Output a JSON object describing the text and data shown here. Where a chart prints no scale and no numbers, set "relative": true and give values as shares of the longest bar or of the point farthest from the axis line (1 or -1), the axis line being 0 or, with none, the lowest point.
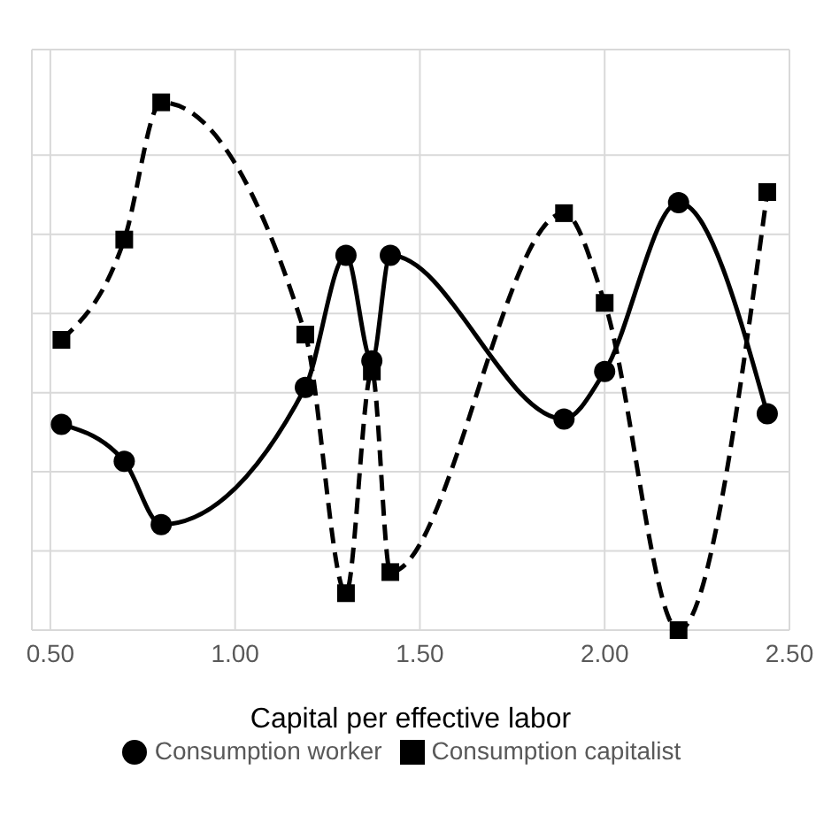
{
  "chart_data": {
    "type": "line",
    "xlabel": "Capital per effective labor",
    "relative": true,
    "grid": true,
    "legend": "bottom",
    "xlim": [
      0.45,
      2.5
    ],
    "xticks": [
      {
        "value": 0.5,
        "label": "0.50"
      },
      {
        "value": 1,
        "label": "1.00"
      },
      {
        "value": 1.5,
        "label": "1.50"
      },
      {
        "value": 2,
        "label": "2.00"
      },
      {
        "value": 2.5,
        "label": "2.50"
      }
    ],
    "x": [
      0.53,
      0.7,
      0.8,
      1.19,
      1.3,
      1.37,
      1.42,
      1.89,
      2.0,
      2.2,
      2.44
    ],
    "series": [
      {
        "name": "Consumption worker",
        "color": "#000000",
        "marker": "circle",
        "line_style": "solid",
        "values": [
          0.39,
          0.32,
          0.2,
          0.46,
          0.71,
          0.51,
          0.71,
          0.4,
          0.49,
          0.81,
          0.41
        ]
      },
      {
        "name": "Consumption capitalist",
        "color": "#000000",
        "marker": "square",
        "line_style": "dashed",
        "values": [
          0.55,
          0.74,
          1,
          0.56,
          0.07,
          0.49,
          0.11,
          0.79,
          0.62,
          0,
          0.83
        ]
      }
    ]
  }
}
